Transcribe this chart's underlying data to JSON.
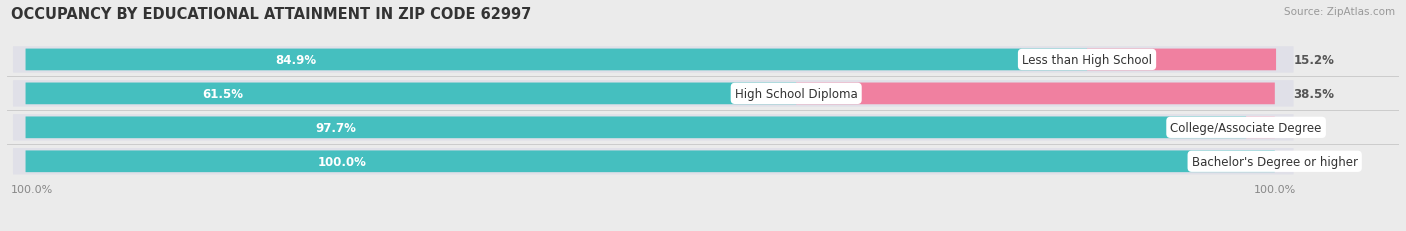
{
  "title": "OCCUPANCY BY EDUCATIONAL ATTAINMENT IN ZIP CODE 62997",
  "source": "Source: ZipAtlas.com",
  "categories": [
    "Less than High School",
    "High School Diploma",
    "College/Associate Degree",
    "Bachelor's Degree or higher"
  ],
  "owner_values": [
    84.9,
    61.5,
    97.7,
    100.0
  ],
  "renter_values": [
    15.2,
    38.5,
    2.3,
    0.0
  ],
  "owner_color": "#45bfbf",
  "renter_color": "#f080a0",
  "renter_color_light": "#f5aabf",
  "background_color": "#ebebeb",
  "bar_bg_color": "#e0e0e8",
  "title_fontsize": 10.5,
  "label_fontsize": 8.5,
  "pct_fontsize": 8.5,
  "bar_height": 0.62,
  "xlim_left": -2,
  "xlim_right": 110,
  "x_tick_left": 0,
  "x_tick_right": 100
}
